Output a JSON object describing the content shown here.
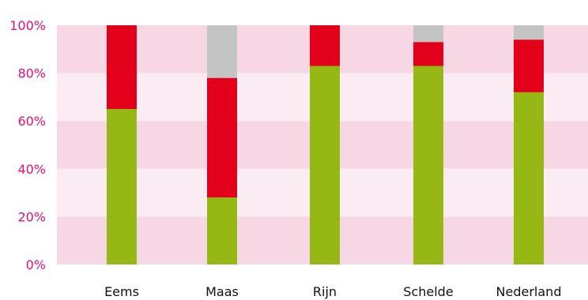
{
  "chart_data": {
    "type": "bar",
    "stacked": true,
    "percent": true,
    "categories": [
      "Eems",
      "Maas",
      "Rijn",
      "Schelde",
      "Nederland"
    ],
    "series": [
      {
        "color": "#96b814",
        "values": [
          65,
          28,
          83,
          83,
          72
        ]
      },
      {
        "color": "#e2001a",
        "values": [
          35,
          50,
          17,
          10,
          22
        ]
      },
      {
        "color": "#c4c4c4",
        "values": [
          0,
          22,
          0,
          7,
          6
        ]
      }
    ],
    "yticks": [
      "0%",
      "20%",
      "40%",
      "60%",
      "80%",
      "100%"
    ],
    "ylim": [
      0,
      100
    ],
    "grid": "alternating horizontal bands",
    "title": "",
    "xlabel": "",
    "ylabel": "",
    "colors": {
      "band_dark": "#f8d7e4",
      "band_light": "#fbebf2",
      "tick_text": "#e0107a",
      "category_text": "#111111"
    }
  }
}
